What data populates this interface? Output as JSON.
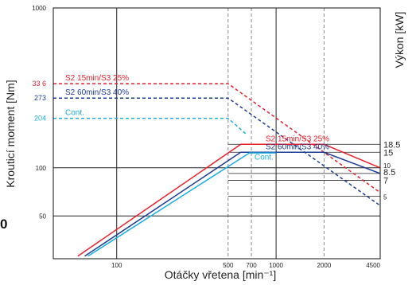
{
  "chart_data": {
    "type": "line",
    "xlabel": "Otáčky vřetena [min⁻¹]",
    "ylabel_left": "Krouticí moment [Nm]",
    "ylabel_right": "Výkon [kW]",
    "x_scale": "log",
    "y_scale": "log",
    "xlim": [
      40,
      4500
    ],
    "ylim_left": [
      27,
      1000
    ],
    "grid": true,
    "x_ticks": [
      "100",
      "500",
      "700",
      "1000",
      "2000",
      "4500"
    ],
    "x_tick_values": [
      100,
      500,
      700,
      1000,
      2000,
      4500
    ],
    "y_ticks_left": [
      "1000",
      "100",
      "50"
    ],
    "y_tick_values_left": [
      1000,
      100,
      50
    ],
    "y_ticks_right": [
      "18.5",
      "15",
      "10",
      "8.5",
      "7",
      "5"
    ],
    "y_tick_values_right_nm": [
      140.3,
      125.1,
      100.0,
      92.2,
      83.6,
      66.5
    ],
    "torque_labels": [
      "33 6",
      "273",
      "204"
    ],
    "torque_label_values": [
      336,
      273,
      204
    ],
    "series": [
      {
        "name": "S2 15min/S3  25%",
        "kind": "torque",
        "color": "#e8212e",
        "dashed": true,
        "points": [
          [
            40,
            336
          ],
          [
            500,
            336
          ],
          [
            4500,
            70
          ]
        ]
      },
      {
        "name": "S2 60min/S3  40%",
        "kind": "torque",
        "color": "#1e3c96",
        "dashed": true,
        "points": [
          [
            40,
            273
          ],
          [
            500,
            273
          ],
          [
            4500,
            58
          ]
        ]
      },
      {
        "name": "Cont.",
        "kind": "torque",
        "color": "#1aaee0",
        "dashed": true,
        "points": [
          [
            40,
            204
          ],
          [
            500,
            204
          ],
          [
            660,
            160
          ]
        ]
      },
      {
        "name": "S2 15min/S3  25%",
        "kind": "power",
        "color": "#e8212e",
        "dashed": false,
        "points": [
          [
            57,
            28
          ],
          [
            600,
            140.3
          ],
          [
            2000,
            140.3
          ],
          [
            4500,
            100
          ]
        ]
      },
      {
        "name": "S2 60min/S3  40%",
        "kind": "power",
        "color": "#1e3c96",
        "dashed": false,
        "points": [
          [
            63,
            28
          ],
          [
            600,
            125.1
          ],
          [
            2000,
            125.1
          ],
          [
            4500,
            92.2
          ]
        ]
      },
      {
        "name": "Cont.",
        "kind": "power",
        "color": "#1aaee0",
        "dashed": false,
        "points": [
          [
            66,
            28
          ],
          [
            680,
            124
          ],
          [
            1000,
            124
          ]
        ]
      }
    ]
  },
  "stray_text": "0"
}
